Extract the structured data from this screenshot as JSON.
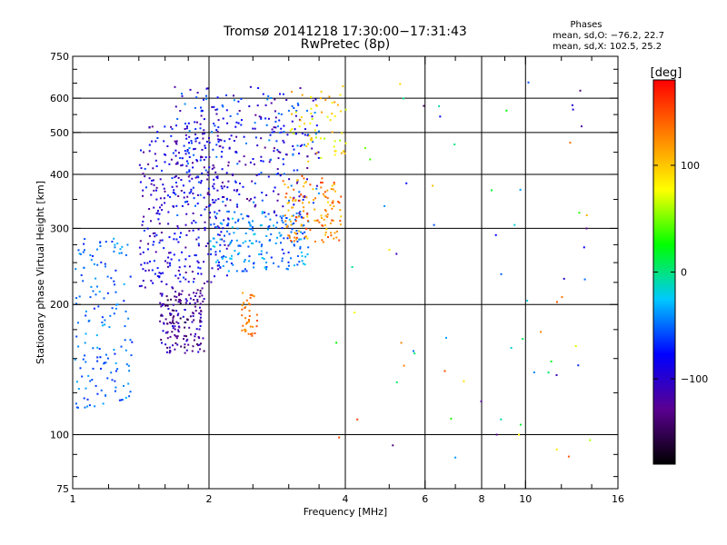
{
  "chart_data": {
    "type": "scatter",
    "title": "Tromsø 20141218 17:30:00−17:31:43",
    "subtitle": "RwPretec (8p)",
    "xlabel": "Frequency [MHz]",
    "ylabel": "Stationary phase Virtual Height [km]",
    "x_scale": "log",
    "y_scale": "log",
    "xlim": [
      1,
      16
    ],
    "ylim": [
      75,
      750
    ],
    "x_ticks": [
      1,
      2,
      4,
      6,
      8,
      10,
      16
    ],
    "x_tick_labels": [
      "1",
      "2",
      "4",
      "6",
      "8",
      "10",
      "16"
    ],
    "x_minor_ticks": [
      1.2,
      1.4,
      1.6,
      1.8,
      2.5,
      3,
      3.5,
      5,
      7,
      9,
      12,
      14
    ],
    "y_ticks": [
      75,
      100,
      200,
      300,
      400,
      500,
      600,
      750
    ],
    "y_tick_labels": [
      "75",
      "100",
      "200",
      "300",
      "400",
      "500",
      "600",
      "750"
    ],
    "y_minor_ticks": [
      80,
      90,
      125,
      150,
      175,
      225,
      250,
      275,
      350,
      450,
      550,
      650,
      700
    ],
    "x_gridlines": [
      2,
      4,
      6,
      8,
      10
    ],
    "y_gridlines": [
      100,
      200,
      300,
      400,
      500,
      600
    ],
    "grid": true,
    "colorbar": {
      "label": "[deg]",
      "range": [
        -180,
        180
      ],
      "ticks": [
        -100,
        0,
        100
      ],
      "tick_labels": [
        "−100",
        "0",
        "100"
      ],
      "colors": [
        "#000000",
        "#5a0090",
        "#0000ff",
        "#00c8ff",
        "#00ff00",
        "#ffff00",
        "#ff8000",
        "#ff0000"
      ]
    },
    "stats": {
      "header": "Phases",
      "line1": "mean, sd,O: −76.2, 22.7",
      "line2": "mean, sd,X: 102.5, 25.2"
    },
    "clusters": [
      {
        "name": "low-frequency cyan scatter",
        "f": [
          1.0,
          1.35
        ],
        "h": [
          115,
          290
        ],
        "phase": [
          -70,
          -30
        ],
        "n": 160
      },
      {
        "name": "lower blue/purple trace",
        "f": [
          1.55,
          1.95
        ],
        "h": [
          155,
          220
        ],
        "phase": [
          -160,
          -90
        ],
        "n": 170
      },
      {
        "name": "main blue trace",
        "f": [
          1.4,
          2.2
        ],
        "h": [
          220,
          520
        ],
        "phase": [
          -130,
          -60
        ],
        "n": 330
      },
      {
        "name": "cyan F-trace",
        "f": [
          2.0,
          3.3
        ],
        "h": [
          240,
          330
        ],
        "phase": [
          -70,
          -20
        ],
        "n": 200
      },
      {
        "name": "upper blue cloud",
        "f": [
          1.65,
          3.5
        ],
        "h": [
          320,
          640
        ],
        "phase": [
          -130,
          -40
        ],
        "n": 330
      },
      {
        "name": "orange X-trace",
        "f": [
          2.9,
          3.9
        ],
        "h": [
          280,
          400
        ],
        "phase": [
          90,
          160
        ],
        "n": 130
      },
      {
        "name": "yellow upper edge",
        "f": [
          3.0,
          4.0
        ],
        "h": [
          430,
          650
        ],
        "phase": [
          60,
          120
        ],
        "n": 60
      },
      {
        "name": "orange patch near 2.5 MHz",
        "f": [
          2.35,
          2.55
        ],
        "h": [
          170,
          215
        ],
        "phase": [
          110,
          150
        ],
        "n": 40
      },
      {
        "name": "sparse scatter",
        "f": [
          3.8,
          14
        ],
        "h": [
          85,
          660
        ],
        "phase": [
          -150,
          160
        ],
        "n": 70
      }
    ]
  }
}
